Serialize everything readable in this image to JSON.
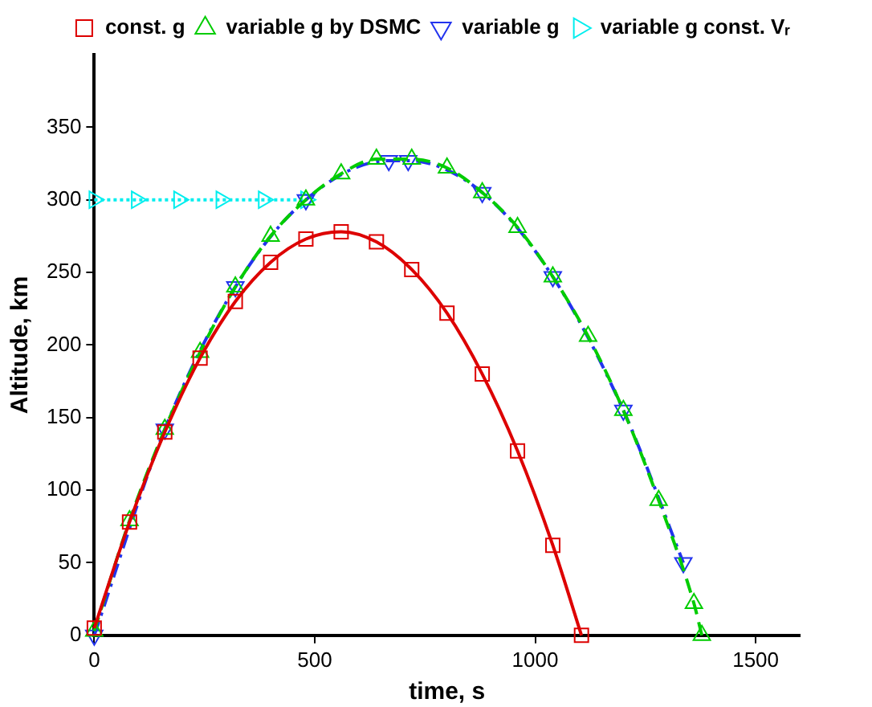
{
  "chart_data": {
    "type": "line",
    "xlabel": "time, s",
    "ylabel": "Altitude, km",
    "xlim": [
      0,
      1600
    ],
    "xticks": [
      0,
      500,
      1000,
      1500
    ],
    "ylim": [
      0,
      400
    ],
    "yticks": [
      0,
      50,
      100,
      150,
      200,
      250,
      300,
      350
    ],
    "grid": false,
    "legend": "top right",
    "series": [
      {
        "name": "const. g",
        "color": "#dd0000",
        "marker": "square",
        "line_style": "solid",
        "x": [
          0,
          80,
          160,
          240,
          320,
          400,
          480,
          560,
          640,
          720,
          800,
          880,
          960,
          1040,
          1105
        ],
        "values": [
          5,
          78,
          140,
          191,
          230,
          257,
          273,
          278,
          271,
          252,
          222,
          180,
          127,
          62,
          0
        ]
      },
      {
        "name": "variable g by DSMC",
        "color": "#00cc00",
        "marker": "triangle",
        "line_style": "dashed",
        "x": [
          0,
          80,
          160,
          240,
          320,
          400,
          480,
          560,
          640,
          720,
          800,
          880,
          960,
          1040,
          1120,
          1200,
          1280,
          1360,
          1378
        ],
        "values": [
          3,
          79,
          142,
          195,
          240,
          275,
          300,
          318,
          328,
          328,
          322,
          305,
          281,
          247,
          206,
          155,
          93,
          22,
          0
        ]
      },
      {
        "name": "variable g",
        "color": "#2233ee",
        "marker": "triangle-down",
        "line_style": "dashdot",
        "x": [
          0,
          160,
          320,
          480,
          668,
          712,
          880,
          1040,
          1200,
          1336
        ],
        "values": [
          0,
          142,
          240,
          300,
          327,
          327,
          305,
          247,
          155,
          50
        ]
      },
      {
        "name": "variable g const. Vᵣ",
        "color": "#00eeee",
        "marker": "triangle-right",
        "line_style": "dotted",
        "x": [
          0,
          96,
          192,
          288,
          384,
          480
        ],
        "values": [
          300,
          300,
          300,
          300,
          300,
          300
        ]
      }
    ]
  }
}
